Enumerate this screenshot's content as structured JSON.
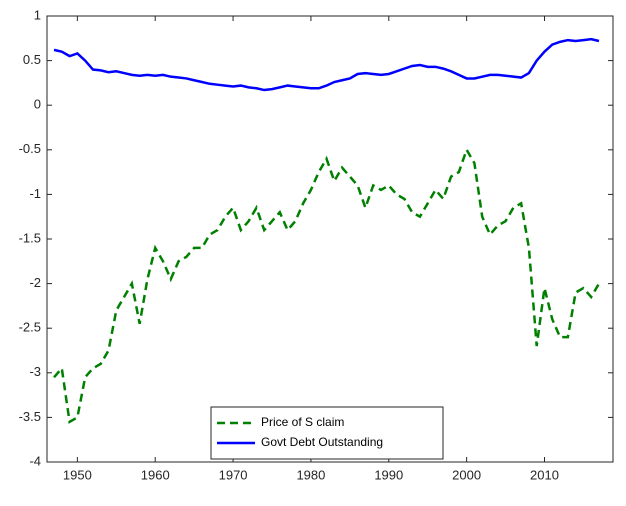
{
  "chart_data": {
    "type": "line",
    "x": [
      1947,
      1948,
      1949,
      1950,
      1951,
      1952,
      1953,
      1954,
      1955,
      1956,
      1957,
      1958,
      1959,
      1960,
      1961,
      1962,
      1963,
      1964,
      1965,
      1966,
      1967,
      1968,
      1969,
      1970,
      1971,
      1972,
      1973,
      1974,
      1975,
      1976,
      1977,
      1978,
      1979,
      1980,
      1981,
      1982,
      1983,
      1984,
      1985,
      1986,
      1987,
      1988,
      1989,
      1990,
      1991,
      1992,
      1993,
      1994,
      1995,
      1996,
      1997,
      1998,
      1999,
      2000,
      2001,
      2002,
      2003,
      2004,
      2005,
      2006,
      2007,
      2008,
      2009,
      2010,
      2011,
      2012,
      2013,
      2014,
      2015,
      2016,
      2017
    ],
    "series": [
      {
        "name": "Price of S claim",
        "color": "#008000",
        "dash": true,
        "values": [
          -3.05,
          -2.95,
          -3.55,
          -3.5,
          -3.05,
          -2.95,
          -2.9,
          -2.75,
          -2.3,
          -2.15,
          -2.0,
          -2.45,
          -1.95,
          -1.6,
          -1.75,
          -1.95,
          -1.75,
          -1.7,
          -1.6,
          -1.6,
          -1.45,
          -1.4,
          -1.25,
          -1.15,
          -1.4,
          -1.3,
          -1.15,
          -1.4,
          -1.3,
          -1.2,
          -1.4,
          -1.3,
          -1.1,
          -0.95,
          -0.75,
          -0.6,
          -0.85,
          -0.7,
          -0.8,
          -0.9,
          -1.15,
          -0.9,
          -0.95,
          -0.9,
          -1.0,
          -1.05,
          -1.2,
          -1.25,
          -1.1,
          -0.95,
          -1.05,
          -0.8,
          -0.75,
          -0.5,
          -0.65,
          -1.25,
          -1.45,
          -1.35,
          -1.3,
          -1.15,
          -1.1,
          -1.6,
          -2.7,
          -2.05,
          -2.4,
          -2.6,
          -2.6,
          -2.1,
          -2.05,
          -2.15,
          -2.0
        ]
      },
      {
        "name": "Govt Debt Outstanding",
        "color": "#0000ff",
        "dash": false,
        "values": [
          0.62,
          0.6,
          0.55,
          0.58,
          0.5,
          0.4,
          0.39,
          0.37,
          0.38,
          0.36,
          0.34,
          0.33,
          0.34,
          0.33,
          0.34,
          0.32,
          0.31,
          0.3,
          0.28,
          0.26,
          0.24,
          0.23,
          0.22,
          0.21,
          0.22,
          0.2,
          0.19,
          0.17,
          0.18,
          0.2,
          0.22,
          0.21,
          0.2,
          0.19,
          0.19,
          0.22,
          0.26,
          0.28,
          0.3,
          0.35,
          0.36,
          0.35,
          0.34,
          0.35,
          0.38,
          0.41,
          0.44,
          0.45,
          0.43,
          0.43,
          0.41,
          0.38,
          0.34,
          0.3,
          0.3,
          0.32,
          0.34,
          0.34,
          0.33,
          0.32,
          0.31,
          0.36,
          0.5,
          0.6,
          0.68,
          0.71,
          0.73,
          0.72,
          0.73,
          0.74,
          0.72
        ]
      }
    ],
    "xlim": [
      1946.1,
      2018.8
    ],
    "xticks": [
      1950,
      1960,
      1970,
      1980,
      1990,
      2000,
      2010
    ],
    "ylim": [
      -4,
      1
    ],
    "yticks": [
      -4,
      -3.5,
      -3,
      -2.5,
      -2,
      -1.5,
      -1,
      -0.5,
      0,
      0.5,
      1
    ],
    "grid": false,
    "legend": "bottom"
  }
}
